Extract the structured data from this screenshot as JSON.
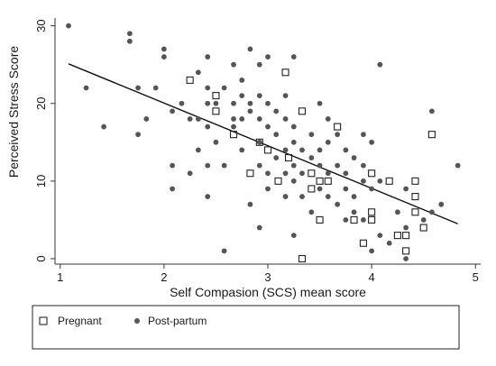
{
  "chart_data": {
    "type": "scatter",
    "title": "",
    "xlabel": "Self Compasion (SCS) mean score",
    "ylabel": "Perceived Stress Score",
    "xlim": [
      0.95,
      5.05
    ],
    "ylim": [
      -0.7,
      31.0
    ],
    "xticks": [
      1,
      2,
      3,
      4,
      5
    ],
    "yticks": [
      0,
      10,
      20,
      30
    ],
    "grid": false,
    "legend_position": "bottom",
    "series": [
      {
        "name": "Pregnant",
        "marker": "hollow-square",
        "color": "#222222",
        "points": [
          [
            2.25,
            23
          ],
          [
            2.5,
            21
          ],
          [
            2.5,
            19
          ],
          [
            2.67,
            16
          ],
          [
            2.83,
            11
          ],
          [
            2.92,
            15
          ],
          [
            3.0,
            14
          ],
          [
            3.1,
            10
          ],
          [
            3.17,
            24
          ],
          [
            3.2,
            13
          ],
          [
            3.33,
            19
          ],
          [
            3.33,
            0
          ],
          [
            3.42,
            11
          ],
          [
            3.42,
            9
          ],
          [
            3.5,
            5
          ],
          [
            3.5,
            10
          ],
          [
            3.58,
            10
          ],
          [
            3.67,
            17
          ],
          [
            3.83,
            5
          ],
          [
            3.92,
            2
          ],
          [
            4.0,
            11
          ],
          [
            4.0,
            6
          ],
          [
            4.0,
            5
          ],
          [
            4.17,
            10
          ],
          [
            4.25,
            3
          ],
          [
            4.33,
            3
          ],
          [
            4.33,
            1
          ],
          [
            4.42,
            10
          ],
          [
            4.42,
            8
          ],
          [
            4.42,
            6
          ],
          [
            4.5,
            4
          ],
          [
            4.58,
            16
          ]
        ]
      },
      {
        "name": "Post-partum",
        "marker": "filled-circle",
        "color": "#555555",
        "points": [
          [
            1.08,
            30
          ],
          [
            1.25,
            22
          ],
          [
            1.42,
            17
          ],
          [
            1.67,
            29
          ],
          [
            1.67,
            28
          ],
          [
            1.75,
            22
          ],
          [
            1.75,
            16
          ],
          [
            1.83,
            18
          ],
          [
            1.92,
            22
          ],
          [
            2.0,
            27
          ],
          [
            2.0,
            26
          ],
          [
            2.08,
            19
          ],
          [
            2.08,
            12
          ],
          [
            2.08,
            9
          ],
          [
            2.17,
            20
          ],
          [
            2.25,
            18
          ],
          [
            2.25,
            11
          ],
          [
            2.33,
            24
          ],
          [
            2.33,
            18
          ],
          [
            2.33,
            14
          ],
          [
            2.42,
            26
          ],
          [
            2.42,
            22
          ],
          [
            2.42,
            20
          ],
          [
            2.42,
            17
          ],
          [
            2.42,
            12
          ],
          [
            2.42,
            8
          ],
          [
            2.5,
            20
          ],
          [
            2.5,
            15
          ],
          [
            2.58,
            22
          ],
          [
            2.58,
            12
          ],
          [
            2.58,
            1
          ],
          [
            2.67,
            25
          ],
          [
            2.67,
            20
          ],
          [
            2.67,
            18
          ],
          [
            2.67,
            17
          ],
          [
            2.75,
            23
          ],
          [
            2.75,
            21
          ],
          [
            2.75,
            18
          ],
          [
            2.75,
            14
          ],
          [
            2.83,
            27
          ],
          [
            2.83,
            20
          ],
          [
            2.83,
            19
          ],
          [
            2.83,
            7
          ],
          [
            2.92,
            25
          ],
          [
            2.92,
            21
          ],
          [
            2.92,
            18
          ],
          [
            2.92,
            15
          ],
          [
            2.92,
            12
          ],
          [
            2.92,
            4
          ],
          [
            3.0,
            26
          ],
          [
            3.0,
            20
          ],
          [
            3.0,
            17
          ],
          [
            3.0,
            11
          ],
          [
            3.0,
            9
          ],
          [
            3.08,
            19
          ],
          [
            3.08,
            16
          ],
          [
            3.08,
            13
          ],
          [
            3.17,
            21
          ],
          [
            3.17,
            18
          ],
          [
            3.17,
            14
          ],
          [
            3.17,
            11
          ],
          [
            3.17,
            8
          ],
          [
            3.25,
            26
          ],
          [
            3.25,
            17
          ],
          [
            3.25,
            15
          ],
          [
            3.25,
            12
          ],
          [
            3.25,
            10
          ],
          [
            3.25,
            3
          ],
          [
            3.33,
            14
          ],
          [
            3.33,
            11
          ],
          [
            3.33,
            8
          ],
          [
            3.42,
            16
          ],
          [
            3.42,
            13
          ],
          [
            3.42,
            6
          ],
          [
            3.5,
            20
          ],
          [
            3.5,
            14
          ],
          [
            3.5,
            12
          ],
          [
            3.5,
            9
          ],
          [
            3.58,
            18
          ],
          [
            3.58,
            15
          ],
          [
            3.58,
            11
          ],
          [
            3.58,
            8
          ],
          [
            3.67,
            16
          ],
          [
            3.67,
            12
          ],
          [
            3.67,
            7
          ],
          [
            3.75,
            14
          ],
          [
            3.75,
            11
          ],
          [
            3.75,
            9
          ],
          [
            3.75,
            5
          ],
          [
            3.83,
            13
          ],
          [
            3.83,
            8
          ],
          [
            3.83,
            6
          ],
          [
            3.92,
            16
          ],
          [
            3.92,
            12
          ],
          [
            3.92,
            10
          ],
          [
            3.92,
            5
          ],
          [
            4.0,
            15
          ],
          [
            4.0,
            9
          ],
          [
            4.0,
            1
          ],
          [
            4.08,
            25
          ],
          [
            4.08,
            10
          ],
          [
            4.08,
            3
          ],
          [
            4.17,
            2
          ],
          [
            4.25,
            6
          ],
          [
            4.33,
            9
          ],
          [
            4.33,
            4
          ],
          [
            4.33,
            0
          ],
          [
            4.5,
            5
          ],
          [
            4.58,
            19
          ],
          [
            4.58,
            6
          ],
          [
            4.67,
            7
          ],
          [
            4.83,
            12
          ]
        ]
      }
    ],
    "fit_line": {
      "x": [
        1.08,
        4.83
      ],
      "y": [
        25.1,
        4.5
      ]
    }
  }
}
